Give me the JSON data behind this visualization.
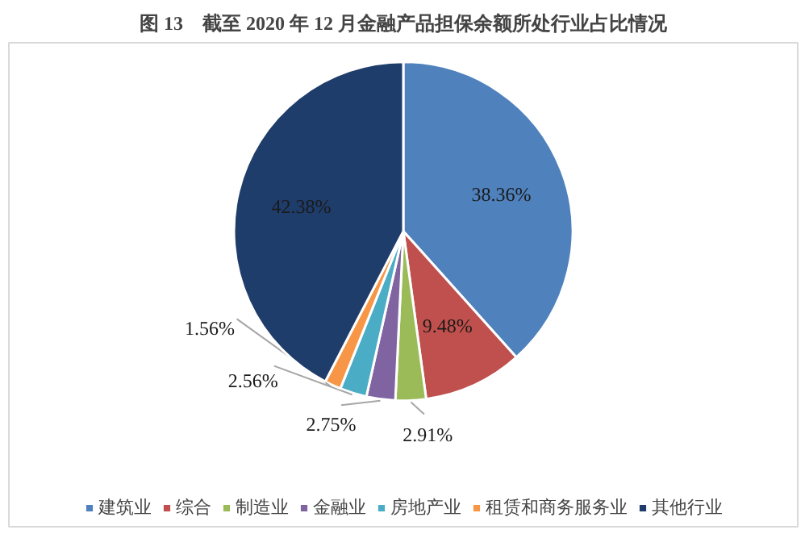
{
  "chart_data": {
    "type": "pie",
    "title": "图 13　截至 2020 年 12 月金融产品担保余额所处行业占比情况",
    "categories": [
      "建筑业",
      "综合",
      "制造业",
      "金融业",
      "房地产业",
      "租赁和商务服务业",
      "其他行业"
    ],
    "values": [
      38.36,
      9.48,
      2.91,
      2.75,
      2.56,
      1.56,
      42.38
    ],
    "colors": [
      "#4f81bd",
      "#c0504d",
      "#9bbb59",
      "#8064a2",
      "#4bacc6",
      "#f79646",
      "#1f3d6b"
    ],
    "value_labels": [
      "38.36%",
      "9.48%",
      "2.91%",
      "2.75%",
      "2.56%",
      "1.56%",
      "42.38%"
    ],
    "legend": "bottom"
  }
}
